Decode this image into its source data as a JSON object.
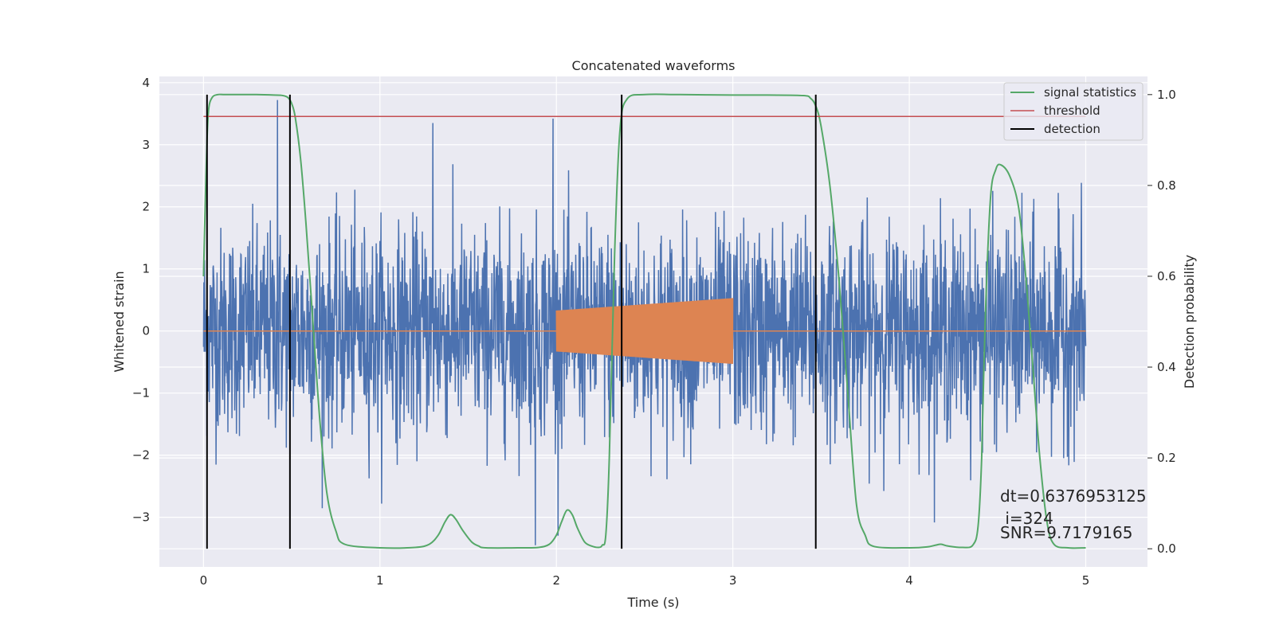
{
  "chart_data": {
    "type": "line",
    "title": "Concatenated waveforms",
    "xlabel": "Time (s)",
    "ylabel": "Whitened strain",
    "y2label": "Detection probability",
    "xlim": [
      -0.25,
      5.35
    ],
    "ylim": [
      -3.8,
      4.1
    ],
    "y2lim": [
      -0.04,
      1.04
    ],
    "xticks": [
      0,
      1,
      2,
      3,
      4,
      5
    ],
    "yticks": [
      -3,
      -2,
      -1,
      0,
      1,
      2,
      3,
      4
    ],
    "y2ticks": [
      0.0,
      0.2,
      0.4,
      0.6,
      0.8,
      1.0
    ],
    "xtick_labels": [
      "0",
      "1",
      "2",
      "3",
      "4",
      "5"
    ],
    "ytick_labels": [
      "−3",
      "−2",
      "−1",
      "0",
      "1",
      "2",
      "3",
      "4"
    ],
    "y2tick_labels": [
      "0.0",
      "0.2",
      "0.4",
      "0.6",
      "0.8",
      "1.0"
    ],
    "grid": true,
    "legend_position": "top-right",
    "colors": {
      "background": "#eaeaf2",
      "grid": "#ffffff",
      "strain": "#4c72b0",
      "injection": "#dd8452",
      "signal_statistics": "#55a868",
      "threshold": "#c44e52",
      "detection": "#000000"
    },
    "series": [
      {
        "name": "strain",
        "axis": "left",
        "x_range": [
          0,
          5
        ],
        "envelope_typical": [
          -1.6,
          1.6
        ],
        "extremes": [
          {
            "x": 0.42,
            "y": 3.72
          },
          {
            "x": 1.3,
            "y": 3.35
          },
          {
            "x": 1.98,
            "y": 3.42
          },
          {
            "x": 1.88,
            "y": -3.45
          }
        ]
      },
      {
        "name": "injection",
        "axis": "left",
        "x_range": [
          2.0,
          3.0
        ],
        "amplitude_start": 0.33,
        "amplitude_end": 0.53
      },
      {
        "name": "signal statistics",
        "axis": "right",
        "x": [
          0.0,
          0.01,
          0.02,
          0.03,
          0.05,
          0.08,
          0.12,
          0.2,
          0.3,
          0.4,
          0.45,
          0.48,
          0.5,
          0.52,
          0.55,
          0.58,
          0.62,
          0.66,
          0.7,
          0.75,
          0.8,
          1.0,
          1.2,
          1.28,
          1.33,
          1.37,
          1.4,
          1.43,
          1.47,
          1.52,
          1.56,
          1.6,
          1.8,
          1.9,
          1.96,
          2.0,
          2.03,
          2.06,
          2.09,
          2.12,
          2.16,
          2.2,
          2.24,
          2.26,
          2.28,
          2.3,
          2.33,
          2.36,
          2.4,
          2.5,
          2.7,
          3.0,
          3.2,
          3.4,
          3.44,
          3.47,
          3.5,
          3.55,
          3.6,
          3.65,
          3.7,
          3.75,
          3.8,
          4.0,
          4.1,
          4.15,
          4.18,
          4.22,
          4.3,
          4.36,
          4.39,
          4.41,
          4.43,
          4.46,
          4.49,
          4.52,
          4.57,
          4.62,
          4.66,
          4.7,
          4.74,
          4.78,
          4.82,
          4.9,
          5.0
        ],
        "values": [
          0.6,
          0.76,
          0.9,
          0.97,
          0.994,
          1.0,
          1.0,
          1.0,
          1.0,
          0.999,
          0.998,
          0.993,
          0.98,
          0.95,
          0.86,
          0.72,
          0.5,
          0.28,
          0.12,
          0.04,
          0.01,
          0.002,
          0.003,
          0.01,
          0.03,
          0.06,
          0.075,
          0.065,
          0.04,
          0.015,
          0.006,
          0.002,
          0.002,
          0.003,
          0.01,
          0.03,
          0.06,
          0.085,
          0.075,
          0.045,
          0.015,
          0.006,
          0.003,
          0.008,
          0.03,
          0.2,
          0.65,
          0.92,
          0.99,
          1.0,
          1.0,
          0.999,
          0.999,
          0.998,
          0.992,
          0.975,
          0.93,
          0.8,
          0.6,
          0.35,
          0.1,
          0.03,
          0.005,
          0.002,
          0.004,
          0.008,
          0.01,
          0.006,
          0.003,
          0.008,
          0.05,
          0.2,
          0.5,
          0.77,
          0.835,
          0.845,
          0.82,
          0.75,
          0.6,
          0.4,
          0.2,
          0.06,
          0.01,
          0.002,
          0.002
        ]
      },
      {
        "name": "threshold",
        "axis": "right",
        "x": [
          0.0,
          5.0
        ],
        "values": [
          0.952,
          0.952
        ]
      },
      {
        "name": "detection",
        "axis": "right",
        "type": "vlines",
        "x": [
          0.02,
          0.49,
          2.37,
          3.47
        ],
        "ymin": 0.0,
        "ymax": 1.0
      }
    ],
    "legend": [
      "signal statistics",
      "threshold",
      "detection"
    ],
    "annotations": [
      "dt=0.6376953125",
      " i=324",
      "SNR=9.7179165"
    ]
  }
}
